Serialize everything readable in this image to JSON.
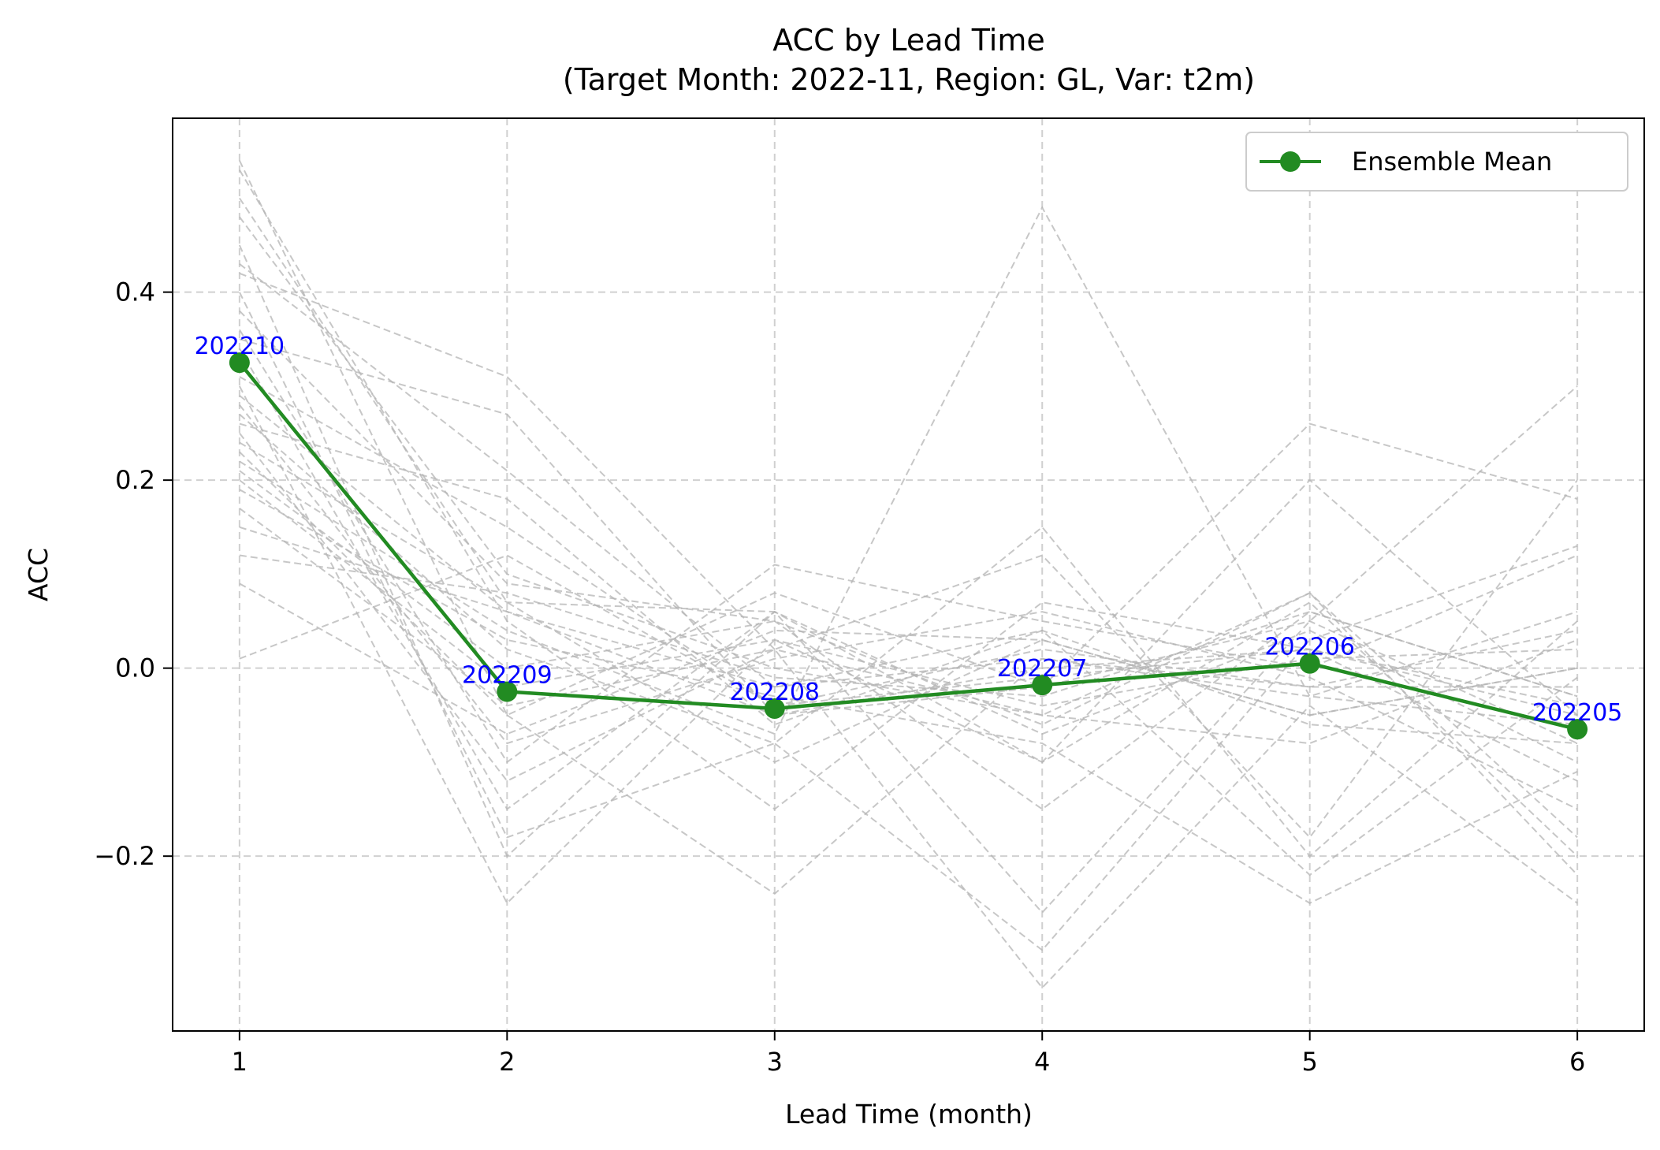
{
  "chart_data": {
    "type": "line",
    "title": "ACC by Lead Time",
    "subtitle": "(Target Month: 2022-11, Region: GL, Var: t2m)",
    "xlabel": "Lead Time (month)",
    "ylabel": "ACC",
    "x": [
      1,
      2,
      3,
      4,
      5,
      6
    ],
    "xlim": [
      0.75,
      6.25
    ],
    "ylim": [
      -0.386,
      0.585
    ],
    "xticks": [
      1,
      2,
      3,
      4,
      5,
      6
    ],
    "yticks": [
      -0.2,
      0.0,
      0.2,
      0.4
    ],
    "ytick_labels": [
      "−0.2",
      "0.0",
      "0.2",
      "0.4"
    ],
    "grid": true,
    "legend_position": "top-right",
    "colors": {
      "mean": "#228B22",
      "members": "#b4b4b4",
      "point_label": "#0000ff",
      "grid": "#d0d0d0"
    },
    "series": [
      {
        "name": "Ensemble Mean",
        "values": [
          0.325,
          -0.025,
          -0.043,
          -0.018,
          0.005,
          -0.065
        ],
        "point_labels": [
          "202210",
          "202209",
          "202208",
          "202207",
          "202206",
          "202205"
        ]
      }
    ],
    "members": [
      [
        0.54,
        -0.05,
        0.08,
        -0.02,
        0.05,
        -0.08
      ],
      [
        0.53,
        0.05,
        -0.15,
        0.07,
        0.02,
        -0.12
      ],
      [
        0.5,
        0.07,
        -0.1,
        0.03,
        -0.05,
        0.0
      ],
      [
        0.48,
        0.1,
        0.0,
        -0.05,
        0.08,
        -0.18
      ],
      [
        0.45,
        -0.2,
        0.06,
        -0.1,
        0.2,
        -0.05
      ],
      [
        0.43,
        0.21,
        -0.02,
        0.01,
        -0.03,
        0.06
      ],
      [
        0.42,
        0.31,
        0.02,
        -0.05,
        -0.08,
        0.03
      ],
      [
        0.4,
        -0.18,
        -0.08,
        0.15,
        -0.2,
        0.05
      ],
      [
        0.38,
        0.09,
        0.05,
        -0.15,
        0.06,
        -0.03
      ],
      [
        0.36,
        -0.1,
        0.11,
        0.05,
        0.0,
        0.12
      ],
      [
        0.35,
        0.27,
        -0.05,
        -0.02,
        0.26,
        0.18
      ],
      [
        0.34,
        -0.15,
        0.06,
        -0.07,
        0.04,
        -0.1
      ],
      [
        0.31,
        0.15,
        -0.04,
        0.02,
        -0.02,
        0.04
      ],
      [
        0.3,
        -0.25,
        0.03,
        -0.1,
        0.07,
        -0.2
      ],
      [
        0.29,
        0.06,
        -0.02,
        0.04,
        -0.06,
        -0.08
      ],
      [
        0.28,
        -0.08,
        0.01,
        0.06,
        -0.01,
        -0.15
      ],
      [
        0.27,
        0.02,
        -0.08,
        -0.3,
        0.03,
        0.13
      ],
      [
        0.26,
        0.18,
        -0.06,
        0.04,
        -0.22,
        -0.01
      ],
      [
        0.25,
        -0.12,
        0.02,
        -0.34,
        -0.04,
        -0.25
      ],
      [
        0.24,
        0.07,
        0.06,
        -0.26,
        0.05,
        0.3
      ],
      [
        0.23,
        -0.05,
        -0.24,
        0.01,
        -0.02,
        -0.02
      ],
      [
        0.22,
        0.04,
        -0.07,
        0.49,
        -0.03,
        -0.06
      ],
      [
        0.21,
        0.0,
        0.05,
        -0.06,
        0.08,
        -0.22
      ],
      [
        0.2,
        -0.02,
        0.03,
        -0.04,
        0.01,
        0.02
      ],
      [
        0.19,
        0.03,
        -0.03,
        -0.08,
        -0.25,
        -0.11
      ],
      [
        0.17,
        -0.04,
        0.02,
        0.12,
        -0.18,
        0.2
      ],
      [
        0.15,
        0.06,
        -0.05,
        0.0,
        0.02,
        -0.05
      ],
      [
        0.12,
        0.08,
        -0.01,
        -0.03,
        0.06,
        -0.03
      ],
      [
        0.09,
        -0.07,
        0.04,
        0.03,
        -0.05,
        0.0
      ],
      [
        0.01,
        0.12,
        -0.04,
        -0.01,
        0.02,
        -0.04
      ]
    ]
  }
}
